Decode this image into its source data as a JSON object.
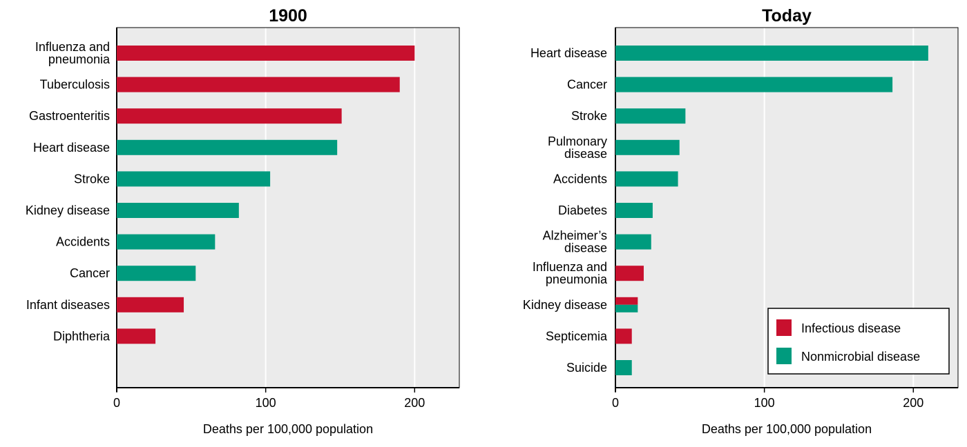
{
  "colors": {
    "infectious": "#c8102e",
    "nonmicrobial": "#009b7e",
    "plot_background": "#ebebeb",
    "gridline": "#ffffff",
    "axis": "#000000"
  },
  "legend": {
    "placement": "bottom-right of right chart",
    "items": [
      {
        "label": "Infectious disease",
        "color": "#c8102e"
      },
      {
        "label": "Nonmicrobial disease",
        "color": "#009b7e"
      }
    ]
  },
  "chart_data": [
    {
      "type": "bar",
      "orientation": "horizontal",
      "title": "1900",
      "xlabel": "Deaths per 100,000 population",
      "ylabel": "",
      "xlim": [
        0,
        230
      ],
      "xticks": [
        0,
        100,
        200
      ],
      "grid": true,
      "categories": [
        [
          "Influenza and",
          "pneumonia"
        ],
        [
          "Tuberculosis"
        ],
        [
          "Gastroenteritis"
        ],
        [
          "Heart disease"
        ],
        [
          "Stroke"
        ],
        [
          "Kidney disease"
        ],
        [
          "Accidents"
        ],
        [
          "Cancer"
        ],
        [
          "Infant diseases"
        ],
        [
          "Diphtheria"
        ]
      ],
      "values": [
        200,
        190,
        151,
        148,
        103,
        82,
        66,
        53,
        45,
        26
      ],
      "kinds": [
        "infectious",
        "infectious",
        "infectious",
        "nonmicrobial",
        "nonmicrobial",
        "nonmicrobial",
        "nonmicrobial",
        "nonmicrobial",
        "infectious",
        "infectious"
      ]
    },
    {
      "type": "bar",
      "orientation": "horizontal",
      "title": "Today",
      "xlabel": "Deaths per 100,000 population",
      "ylabel": "",
      "xlim": [
        0,
        230
      ],
      "xticks": [
        0,
        100,
        200
      ],
      "grid": true,
      "categories": [
        [
          "Heart disease"
        ],
        [
          "Cancer"
        ],
        [
          "Stroke"
        ],
        [
          "Pulmonary",
          "disease"
        ],
        [
          "Accidents"
        ],
        [
          "Diabetes"
        ],
        [
          "Alzheimer’s",
          "disease"
        ],
        [
          "Influenza and",
          "pneumonia"
        ],
        [
          "Kidney disease"
        ],
        [
          "Septicemia"
        ],
        [
          "Suicide"
        ]
      ],
      "values": [
        210,
        186,
        47,
        43,
        42,
        25,
        24,
        19,
        15,
        11,
        11
      ],
      "kinds": [
        "nonmicrobial",
        "nonmicrobial",
        "nonmicrobial",
        "nonmicrobial",
        "nonmicrobial",
        "nonmicrobial",
        "nonmicrobial",
        "infectious",
        "mixed",
        "infectious",
        "nonmicrobial"
      ]
    }
  ]
}
